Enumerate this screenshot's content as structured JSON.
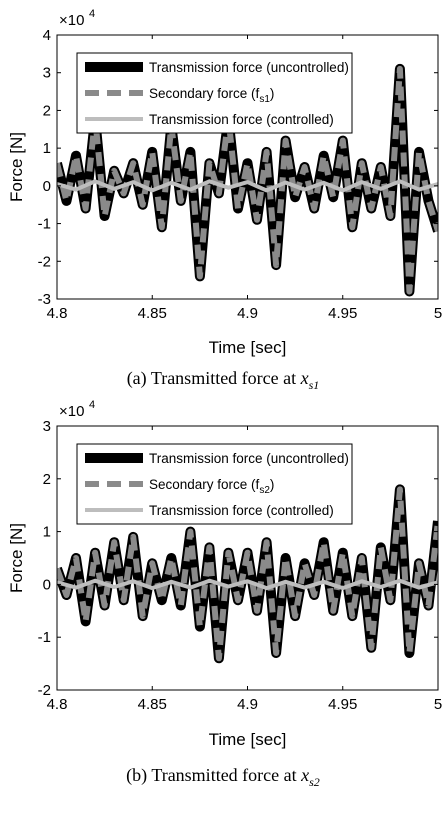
{
  "chart_data": [
    {
      "type": "line",
      "xlabel": "Time [sec]",
      "ylabel": "Force [N]",
      "exponent_label": "×10",
      "exponent_power": "4",
      "xlim": [
        4.8,
        5.0
      ],
      "ylim": [
        -3,
        4
      ],
      "xticks": [
        "4.8",
        "4.85",
        "4.9",
        "4.95",
        "5"
      ],
      "yticks": [
        "-3",
        "-2",
        "-1",
        "0",
        "1",
        "2",
        "3",
        "4"
      ],
      "legend_position": "top-left",
      "caption_prefix": "(a)  Transmitted  force  at",
      "caption_var": "x",
      "caption_sub": "s1",
      "series": [
        {
          "name": "Transmission  force (uncontrolled)",
          "color": "#000000",
          "style": "solid-thick",
          "x": [
            4.8,
            4.805,
            4.81,
            4.815,
            4.82,
            4.825,
            4.83,
            4.835,
            4.84,
            4.845,
            4.85,
            4.855,
            4.86,
            4.865,
            4.87,
            4.875,
            4.88,
            4.885,
            4.89,
            4.895,
            4.9,
            4.905,
            4.91,
            4.915,
            4.92,
            4.925,
            4.93,
            4.935,
            4.94,
            4.945,
            4.95,
            4.955,
            4.96,
            4.965,
            4.97,
            4.975,
            4.98,
            4.985,
            4.99,
            4.995,
            5.0
          ],
          "y": [
            0.6,
            -0.4,
            0.8,
            -0.6,
            1.8,
            -0.8,
            0.4,
            -0.2,
            0.6,
            -0.5,
            0.9,
            -1.1,
            1.6,
            -0.4,
            0.9,
            -2.4,
            0.6,
            -0.2,
            1.8,
            -0.6,
            0.6,
            -0.9,
            0.9,
            -2.1,
            1.2,
            -0.3,
            0.5,
            -0.6,
            0.8,
            -0.3,
            1.2,
            -1.1,
            0.6,
            -0.6,
            0.5,
            -0.8,
            3.1,
            -2.8,
            0.9,
            -0.4,
            -1.2
          ],
          "name_sub": ""
        },
        {
          "name": "Secondary  force (f",
          "name_sub": "s1",
          "name_end": ")",
          "color": "#8a8a8a",
          "style": "dashed",
          "x": [
            4.8,
            4.805,
            4.81,
            4.815,
            4.82,
            4.825,
            4.83,
            4.835,
            4.84,
            4.845,
            4.85,
            4.855,
            4.86,
            4.865,
            4.87,
            4.875,
            4.88,
            4.885,
            4.89,
            4.895,
            4.9,
            4.905,
            4.91,
            4.915,
            4.92,
            4.925,
            4.93,
            4.935,
            4.94,
            4.945,
            4.95,
            4.955,
            4.96,
            4.965,
            4.97,
            4.975,
            4.98,
            4.985,
            4.99,
            4.995,
            5.0
          ],
          "y": [
            0.6,
            -0.4,
            0.8,
            -0.6,
            1.8,
            -0.8,
            0.4,
            -0.2,
            0.6,
            -0.5,
            0.9,
            -1.1,
            1.6,
            -0.4,
            0.9,
            -2.4,
            0.6,
            -0.2,
            1.8,
            -0.6,
            0.6,
            -0.9,
            0.9,
            -2.1,
            1.2,
            -0.3,
            0.5,
            -0.6,
            0.8,
            -0.3,
            1.2,
            -1.1,
            0.6,
            -0.6,
            0.5,
            -0.8,
            3.1,
            -2.8,
            0.9,
            -0.4,
            -1.2
          ]
        },
        {
          "name": "Transmission  force (controlled)",
          "color": "#bdbdbd",
          "style": "solid",
          "x": [
            4.8,
            4.81,
            4.82,
            4.83,
            4.84,
            4.85,
            4.86,
            4.87,
            4.88,
            4.89,
            4.9,
            4.91,
            4.92,
            4.93,
            4.94,
            4.95,
            4.96,
            4.97,
            4.98,
            4.99,
            5.0
          ],
          "y": [
            0.05,
            -0.1,
            0.12,
            -0.08,
            0.1,
            -0.12,
            0.08,
            -0.1,
            0.12,
            -0.05,
            0.1,
            -0.12,
            0.09,
            -0.1,
            0.08,
            -0.12,
            0.1,
            -0.08,
            0.12,
            -0.1,
            0.05
          ],
          "name_sub": ""
        }
      ]
    },
    {
      "type": "line",
      "xlabel": "Time [sec]",
      "ylabel": "Force [N]",
      "exponent_label": "×10",
      "exponent_power": "4",
      "xlim": [
        4.8,
        5.0
      ],
      "ylim": [
        -2,
        3
      ],
      "xticks": [
        "4.8",
        "4.85",
        "4.9",
        "4.95",
        "5"
      ],
      "yticks": [
        "-2",
        "-1",
        "0",
        "1",
        "2",
        "3"
      ],
      "legend_position": "top-left",
      "caption_prefix": "(b)  Transmitted  force  at",
      "caption_var": "x",
      "caption_sub": "s2",
      "series": [
        {
          "name": "Transmission  force (uncontrolled)",
          "color": "#000000",
          "style": "solid-thick",
          "x": [
            4.8,
            4.805,
            4.81,
            4.815,
            4.82,
            4.825,
            4.83,
            4.835,
            4.84,
            4.845,
            4.85,
            4.855,
            4.86,
            4.865,
            4.87,
            4.875,
            4.88,
            4.885,
            4.89,
            4.895,
            4.9,
            4.905,
            4.91,
            4.915,
            4.92,
            4.925,
            4.93,
            4.935,
            4.94,
            4.945,
            4.95,
            4.955,
            4.96,
            4.965,
            4.97,
            4.975,
            4.98,
            4.985,
            4.99,
            4.995,
            5.0
          ],
          "y": [
            0.3,
            -0.2,
            0.5,
            -0.7,
            0.6,
            -0.4,
            0.8,
            -0.3,
            0.9,
            -0.6,
            0.4,
            -0.3,
            0.5,
            -0.4,
            1.0,
            -0.8,
            0.7,
            -1.4,
            0.6,
            -0.3,
            0.6,
            -0.5,
            0.8,
            -1.3,
            0.5,
            -0.6,
            0.4,
            -0.2,
            0.8,
            -0.5,
            0.6,
            -0.6,
            0.5,
            -1.2,
            0.7,
            -0.3,
            1.8,
            -1.3,
            0.4,
            -0.4,
            1.2
          ],
          "name_sub": ""
        },
        {
          "name": "Secondary  force (f",
          "name_sub": "s2",
          "name_end": ")",
          "color": "#8a8a8a",
          "style": "dashed",
          "x": [
            4.8,
            4.805,
            4.81,
            4.815,
            4.82,
            4.825,
            4.83,
            4.835,
            4.84,
            4.845,
            4.85,
            4.855,
            4.86,
            4.865,
            4.87,
            4.875,
            4.88,
            4.885,
            4.89,
            4.895,
            4.9,
            4.905,
            4.91,
            4.915,
            4.92,
            4.925,
            4.93,
            4.935,
            4.94,
            4.945,
            4.95,
            4.955,
            4.96,
            4.965,
            4.97,
            4.975,
            4.98,
            4.985,
            4.99,
            4.995,
            5.0
          ],
          "y": [
            0.3,
            -0.2,
            0.5,
            -0.7,
            0.6,
            -0.4,
            0.8,
            -0.3,
            0.9,
            -0.6,
            0.4,
            -0.3,
            0.5,
            -0.4,
            1.0,
            -0.8,
            0.7,
            -1.4,
            0.6,
            -0.3,
            0.6,
            -0.5,
            0.8,
            -1.3,
            0.5,
            -0.6,
            0.4,
            -0.2,
            0.8,
            -0.5,
            0.6,
            -0.6,
            0.5,
            -1.2,
            0.7,
            -0.3,
            1.8,
            -1.3,
            0.4,
            -0.4,
            1.2
          ]
        },
        {
          "name": "Transmission  force (controlled)",
          "color": "#bdbdbd",
          "style": "solid",
          "x": [
            4.8,
            4.81,
            4.82,
            4.83,
            4.84,
            4.85,
            4.86,
            4.87,
            4.88,
            4.89,
            4.9,
            4.91,
            4.92,
            4.93,
            4.94,
            4.95,
            4.96,
            4.97,
            4.98,
            4.99,
            5.0
          ],
          "y": [
            0.04,
            -0.06,
            0.07,
            -0.05,
            0.06,
            -0.07,
            0.05,
            -0.06,
            0.07,
            -0.04,
            0.06,
            -0.07,
            0.05,
            -0.06,
            0.05,
            -0.07,
            0.06,
            -0.05,
            0.07,
            -0.06,
            0.04
          ],
          "name_sub": ""
        }
      ]
    }
  ]
}
